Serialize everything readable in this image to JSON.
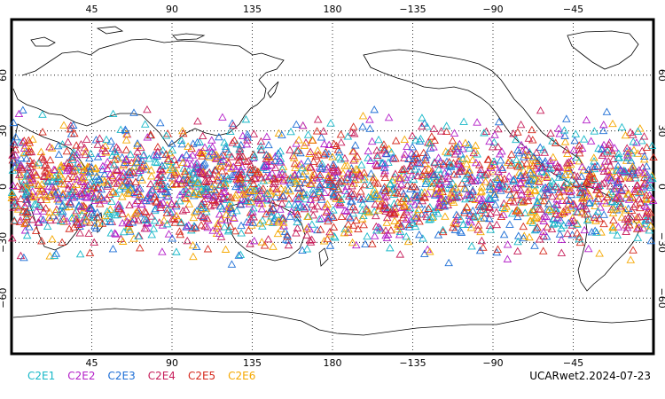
{
  "map": {
    "lon_ticks": [
      "45",
      "90",
      "135",
      "180",
      "−135",
      "−90",
      "−45"
    ],
    "lat_ticks": [
      "60",
      "30",
      "0",
      "−30",
      "−60"
    ],
    "lon_values": [
      45,
      90,
      135,
      180,
      225,
      270,
      315
    ],
    "lat_values": [
      60,
      30,
      0,
      -30,
      -60
    ],
    "lon_range": [
      0,
      360
    ],
    "lat_range": [
      -90,
      90
    ],
    "grid": true,
    "marker_shape": "triangle",
    "observation_lat_band": [
      -45,
      45
    ]
  },
  "legend": {
    "items": [
      {
        "label": "C2E1",
        "color": "#17b8c8"
      },
      {
        "label": "C2E2",
        "color": "#b41fc8"
      },
      {
        "label": "C2E3",
        "color": "#1e6fd6"
      },
      {
        "label": "C2E4",
        "color": "#c71e5a"
      },
      {
        "label": "C2E5",
        "color": "#d62a1e"
      },
      {
        "label": "C2E6",
        "color": "#f5a800"
      }
    ]
  },
  "footer": {
    "label": "UCARwet2.2024-07-23"
  }
}
